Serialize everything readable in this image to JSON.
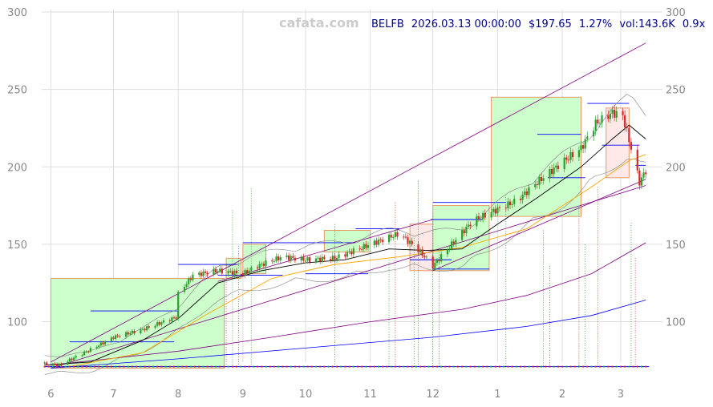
{
  "watermark": "cafata.com",
  "header": {
    "symbol": "BELFB",
    "datetime": "2026.03.13 00:00:00",
    "price": "$197.65",
    "change": "1.27%",
    "volume": "vol:143.6K",
    "ratio": "0.9x"
  },
  "chart_data": {
    "type": "candlestick",
    "ylim": [
      62,
      300
    ],
    "y_ticks": [
      100,
      150,
      200,
      250,
      300
    ],
    "x_tick_labels": [
      "6",
      "7",
      "8",
      "9",
      "10",
      "11",
      "12",
      "1",
      "2",
      "3"
    ],
    "x_tick_months": [
      "2025-06",
      "2025-07",
      "2025-08",
      "2025-09",
      "2025-10",
      "2025-11",
      "2025-12",
      "2026-01",
      "2026-02",
      "2026-03"
    ],
    "grid": true,
    "colors": {
      "up": "#2ca02c",
      "down": "#d62728",
      "ma_fast": "#000000",
      "ma_mid": "#ffa500",
      "ma_slow": "#800080",
      "ma_long": "#0000ff",
      "band": "#808080",
      "box_up": "#ccffcc",
      "box_down": "#ffe8e8",
      "box_edge": "#e69966",
      "level": "#0000ff",
      "grid": "#dddddd"
    },
    "close_path": [
      [
        "2025-05-29",
        73
      ],
      [
        "2025-06-05",
        72
      ],
      [
        "2025-06-20",
        82
      ],
      [
        "2025-07-01",
        90
      ],
      [
        "2025-07-15",
        95
      ],
      [
        "2025-07-31",
        103
      ],
      [
        "2025-08-01",
        118
      ],
      [
        "2025-08-08",
        130
      ],
      [
        "2025-08-20",
        133
      ],
      [
        "2025-09-01",
        131
      ],
      [
        "2025-09-08",
        136
      ],
      [
        "2025-09-20",
        142
      ],
      [
        "2025-10-01",
        140
      ],
      [
        "2025-10-15",
        141
      ],
      [
        "2025-11-01",
        150
      ],
      [
        "2025-11-15",
        157
      ],
      [
        "2025-11-25",
        145
      ],
      [
        "2025-12-01",
        136
      ],
      [
        "2025-12-10",
        150
      ],
      [
        "2025-12-20",
        165
      ],
      [
        "2025-12-31",
        172
      ],
      [
        "2026-01-05",
        175
      ],
      [
        "2026-01-10",
        178
      ],
      [
        "2026-01-20",
        190
      ],
      [
        "2026-02-01",
        203
      ],
      [
        "2026-02-10",
        212
      ],
      [
        "2026-02-17",
        228
      ],
      [
        "2026-02-25",
        235
      ],
      [
        "2026-03-02",
        233
      ],
      [
        "2026-03-06",
        212
      ],
      [
        "2026-03-10",
        190
      ],
      [
        "2026-03-13",
        197.65
      ]
    ],
    "ma_fast": [
      [
        "2025-05-29",
        72
      ],
      [
        "2025-06-20",
        74
      ],
      [
        "2025-07-15",
        88
      ],
      [
        "2025-08-01",
        102
      ],
      [
        "2025-08-20",
        125
      ],
      [
        "2025-09-10",
        133
      ],
      [
        "2025-10-01",
        138
      ],
      [
        "2025-10-20",
        140
      ],
      [
        "2025-11-10",
        147
      ],
      [
        "2025-11-28",
        146
      ],
      [
        "2025-12-15",
        147
      ],
      [
        "2026-01-01",
        163
      ],
      [
        "2026-01-20",
        180
      ],
      [
        "2026-02-10",
        200
      ],
      [
        "2026-02-25",
        218
      ],
      [
        "2026-03-05",
        227
      ],
      [
        "2026-03-13",
        218
      ]
    ],
    "ma_mid": [
      [
        "2025-06-10",
        71
      ],
      [
        "2025-07-15",
        80
      ],
      [
        "2025-08-15",
        105
      ],
      [
        "2025-09-15",
        128
      ],
      [
        "2025-10-15",
        137
      ],
      [
        "2025-11-15",
        142
      ],
      [
        "2025-12-15",
        148
      ],
      [
        "2026-01-15",
        160
      ],
      [
        "2026-02-15",
        187
      ],
      [
        "2026-03-05",
        204
      ],
      [
        "2026-03-13",
        208
      ]
    ],
    "ma_slow": [
      [
        "2025-06-01",
        72
      ],
      [
        "2025-08-01",
        81
      ],
      [
        "2025-09-15",
        90
      ],
      [
        "2025-11-01",
        100
      ],
      [
        "2025-12-15",
        108
      ],
      [
        "2026-01-15",
        117
      ],
      [
        "2026-02-15",
        131
      ],
      [
        "2026-03-13",
        151
      ]
    ],
    "ma_long": [
      [
        "2025-06-01",
        70
      ],
      [
        "2025-08-01",
        76
      ],
      [
        "2025-10-01",
        83
      ],
      [
        "2025-12-01",
        90
      ],
      [
        "2026-01-15",
        97
      ],
      [
        "2026-02-15",
        104
      ],
      [
        "2026-03-13",
        114
      ]
    ],
    "trend_lines": [
      [
        [
          "2025-06-01",
          74
        ],
        [
          "2026-03-13",
          280
        ]
      ],
      [
        [
          "2025-06-01",
          70
        ],
        [
          "2026-03-13",
          188
        ]
      ],
      [
        [
          "2025-08-20",
          126
        ],
        [
          "2025-12-01",
          166
        ]
      ],
      [
        [
          "2025-12-01",
          133
        ],
        [
          "2026-03-13",
          192
        ]
      ]
    ],
    "boxes": [
      {
        "start": "2025-06-01",
        "end": "2025-08-23",
        "low": 70,
        "high": 128,
        "dir": "up"
      },
      {
        "start": "2025-08-24",
        "end": "2025-08-31",
        "low": 128,
        "high": 141,
        "dir": "up"
      },
      {
        "start": "2025-09-01",
        "end": "2025-09-12",
        "low": 131,
        "high": 150,
        "dir": "up"
      },
      {
        "start": "2025-10-10",
        "end": "2025-11-01",
        "low": 145,
        "high": 159,
        "dir": "up"
      },
      {
        "start": "2025-11-20",
        "end": "2025-12-01",
        "low": 133,
        "high": 163,
        "dir": "down"
      },
      {
        "start": "2025-12-01",
        "end": "2025-12-28",
        "low": 133,
        "high": 175,
        "dir": "up"
      },
      {
        "start": "2025-12-29",
        "end": "2026-02-10",
        "low": 168,
        "high": 245,
        "dir": "up"
      },
      {
        "start": "2026-02-22",
        "end": "2026-03-05",
        "low": 193,
        "high": 238,
        "dir": "down"
      }
    ],
    "levels": [
      {
        "from": "2025-06-20",
        "to": "2025-08-01",
        "price": 107
      },
      {
        "from": "2025-06-10",
        "to": "2025-07-30",
        "price": 87
      },
      {
        "from": "2025-08-01",
        "to": "2025-08-30",
        "price": 137
      },
      {
        "from": "2025-08-20",
        "to": "2025-09-20",
        "price": 130
      },
      {
        "from": "2025-09-01",
        "to": "2025-10-25",
        "price": 151
      },
      {
        "from": "2025-10-01",
        "to": "2025-10-31",
        "price": 131
      },
      {
        "from": "2025-10-25",
        "to": "2025-11-15",
        "price": 160
      },
      {
        "from": "2025-11-20",
        "to": "2025-12-10",
        "price": 140
      },
      {
        "from": "2025-11-30",
        "to": "2025-12-25",
        "price": 166
      },
      {
        "from": "2025-12-01",
        "to": "2026-01-05",
        "price": 177
      },
      {
        "from": "2025-12-01",
        "to": "2025-12-28",
        "price": 134
      },
      {
        "from": "2026-01-20",
        "to": "2026-02-10",
        "price": 221
      },
      {
        "from": "2026-01-25",
        "to": "2026-02-12",
        "price": 193
      },
      {
        "from": "2026-02-13",
        "to": "2026-03-05",
        "price": 241
      },
      {
        "from": "2026-02-20",
        "to": "2026-03-10",
        "price": 214
      },
      {
        "from": "2026-03-08",
        "to": "2026-03-13",
        "price": 201
      }
    ],
    "baseline_price": 71,
    "signal_dates": [
      "2025-08-24",
      "2025-08-27",
      "2025-08-30",
      "2025-09-05",
      "2025-10-15",
      "2025-11-10",
      "2025-11-13",
      "2025-11-22",
      "2025-11-24",
      "2025-12-01",
      "2025-12-04",
      "2026-01-05",
      "2026-01-23",
      "2026-01-26",
      "2026-02-09",
      "2026-02-12",
      "2026-02-18",
      "2026-03-06",
      "2026-03-08"
    ]
  }
}
